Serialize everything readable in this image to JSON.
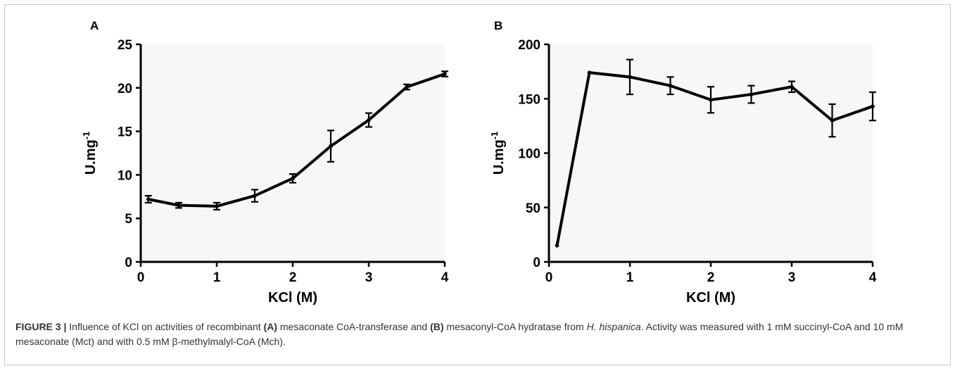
{
  "chart_data": [
    {
      "type": "line",
      "panel_label": "A",
      "xlabel": "KCl (M)",
      "ylabel": "U.mg",
      "ylabel_sup": "-1",
      "xlim": [
        0,
        4
      ],
      "ylim": [
        0,
        25
      ],
      "xticks": [
        0,
        1,
        2,
        3,
        4
      ],
      "yticks": [
        0,
        5,
        10,
        15,
        20,
        25
      ],
      "grid": false,
      "x": [
        0.1,
        0.5,
        1,
        1.5,
        2,
        2.5,
        3,
        3.5,
        4
      ],
      "values": [
        7.2,
        6.5,
        6.4,
        7.6,
        9.6,
        13.3,
        16.3,
        20.1,
        21.6
      ],
      "errors": [
        0.4,
        0.3,
        0.4,
        0.7,
        0.5,
        1.8,
        0.8,
        0.3,
        0.3
      ]
    },
    {
      "type": "line",
      "panel_label": "B",
      "xlabel": "KCl (M)",
      "ylabel": "U.mg",
      "ylabel_sup": "-1",
      "xlim": [
        0,
        4
      ],
      "ylim": [
        0,
        200
      ],
      "xticks": [
        0,
        1,
        2,
        3,
        4
      ],
      "yticks": [
        0,
        50,
        100,
        150,
        200
      ],
      "grid": false,
      "x": [
        0.1,
        0.5,
        1,
        1.5,
        2,
        2.5,
        3,
        3.5,
        4
      ],
      "values": [
        15,
        174,
        170,
        162,
        149,
        154,
        161,
        130,
        143
      ],
      "errors": [
        0,
        0,
        16,
        8,
        12,
        8,
        5,
        15,
        13
      ]
    }
  ],
  "caption": {
    "label": "FIGURE 3 |",
    "t1": " Influence of KCl on activities of recombinant ",
    "b1": "(A)",
    "t2": " mesaconate CoA-transferase and ",
    "b2": "(B)",
    "t3": " mesaconyl-CoA hydratase from ",
    "i1": "H. hispanica",
    "t4": ". Activity was measured with 1 mM succinyl-CoA and 10 mM mesaconate (Mct) and with 0.5 mM β-methylmalyl-CoA (Mch)."
  }
}
